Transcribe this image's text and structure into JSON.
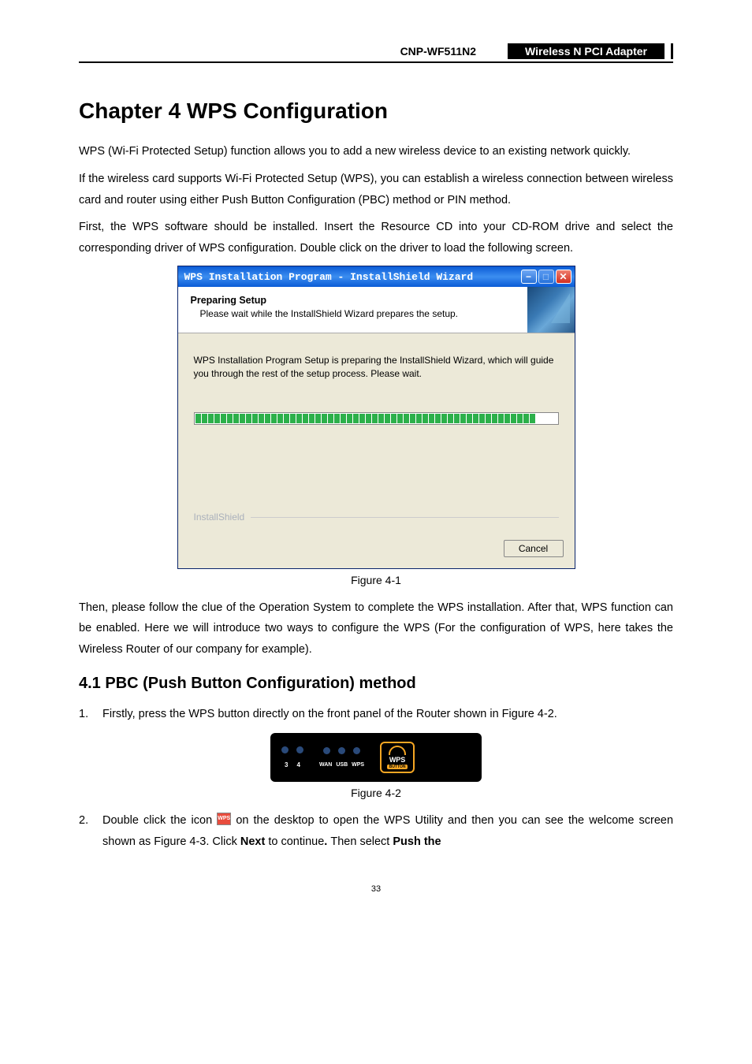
{
  "header": {
    "model": "CNP-WF511N2",
    "product": "Wireless N PCI Adapter"
  },
  "chapter_title": "Chapter 4  WPS Configuration",
  "para1": "WPS (Wi-Fi Protected Setup) function allows you to add a new wireless device to an existing network quickly.",
  "para2": "If the wireless card supports Wi-Fi Protected Setup (WPS), you can establish a wireless connection between wireless card and router using either Push Button Configuration (PBC) method or PIN method.",
  "para3": "First, the WPS software should be installed. Insert the Resource CD into your CD-ROM drive and select the corresponding driver of WPS configuration. Double click on the driver to load the following screen.",
  "dialog": {
    "title": "WPS Installation Program - InstallShield Wizard",
    "heading": "Preparing Setup",
    "subheading": "Please wait while the InstallShield Wizard prepares the setup.",
    "message": "WPS Installation Program Setup is preparing the InstallShield Wizard, which will guide you through the rest of the setup process. Please wait.",
    "footer_label": "InstallShield",
    "cancel": "Cancel",
    "progress_segments": 54,
    "colors": {
      "titlebar_bg": "#0a5bd6",
      "body_bg": "#ece9d8",
      "progress_color": "#2cb04a"
    }
  },
  "fig1_caption": "Figure 4-1",
  "para4": "Then, please follow the clue of the Operation System to complete the WPS installation. After that, WPS function can be enabled. Here we will introduce two ways to configure the WPS (For the configuration of WPS, here takes the Wireless Router of our company for example).",
  "section_4_1": "4.1  PBC (Push Button Configuration) method",
  "step1": "Firstly, press the WPS button directly on the front panel of the Router shown in Figure 4-2.",
  "router": {
    "led_numbers": [
      "3",
      "4"
    ],
    "port_labels": [
      "WAN",
      "USB",
      "WPS"
    ],
    "button_label": "WPS",
    "button_sublabel": "BUTTON",
    "colors": {
      "bg": "#000000",
      "accent": "#f5a623",
      "dot": "#2a4a7a"
    }
  },
  "fig2_caption": "Figure 4-2",
  "step2_a": "Double click the icon ",
  "step2_icon": "WPS",
  "step2_b": " on the desktop to open the WPS Utility and then you can see the welcome screen shown as Figure 4-3. Click ",
  "step2_bold1": "Next",
  "step2_c": " to continue",
  "step2_bold2": ". ",
  "step2_d": "Then select ",
  "step2_bold3": "Push the",
  "page_number": "33"
}
